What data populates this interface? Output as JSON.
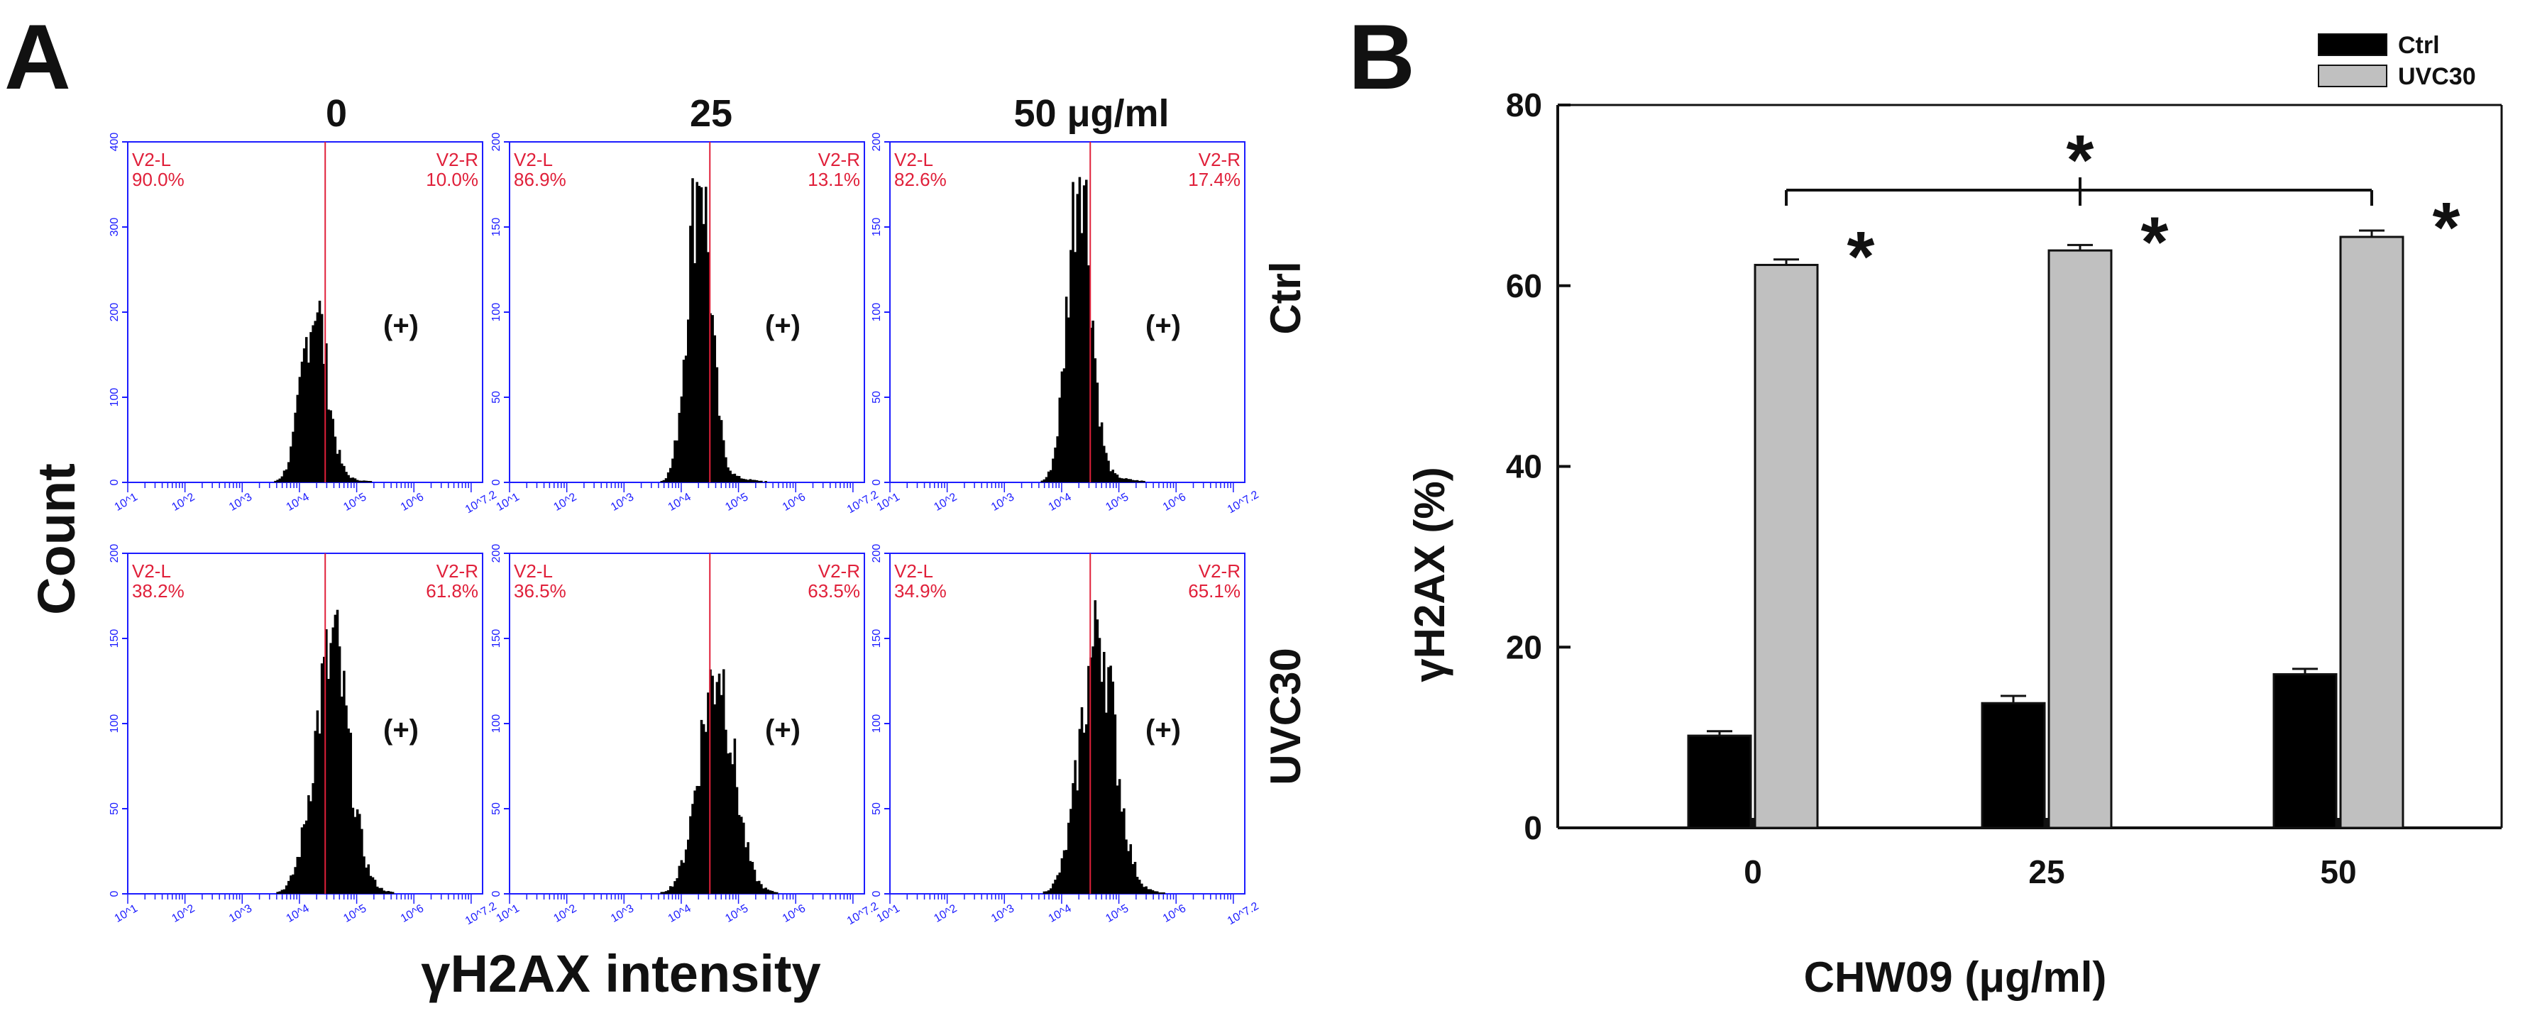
{
  "panel_a": {
    "letter": "A",
    "column_headers": [
      "0",
      "25",
      "50 μg/ml"
    ],
    "row_labels": [
      "Ctrl",
      "UVC30"
    ],
    "y_title": "Count",
    "x_title": "γH2AX intensity",
    "gate_left_label": "V2-L",
    "gate_right_label": "V2-R",
    "positive_marker": "(+)",
    "x_tick_labels": [
      "10^1",
      "10^2",
      "10^3",
      "10^4",
      "10^5",
      "10^6",
      "10^7.2"
    ],
    "hist_color": "#000000",
    "axis_color": "#1c1cff",
    "gate_color": "#e0203a",
    "histograms": [
      {
        "row": 0,
        "col": 0,
        "ymax": 400,
        "yticks": [
          0,
          100,
          200,
          300,
          400
        ],
        "left_pct": "90.0%",
        "right_pct": "10.0%",
        "peak_log": 4.25,
        "peak_count": 210,
        "spread": 0.22,
        "gate_log": 4.45
      },
      {
        "row": 0,
        "col": 1,
        "ymax": 200,
        "yticks": [
          0,
          50,
          100,
          150,
          200
        ],
        "left_pct": "86.9%",
        "right_pct": "13.1%",
        "peak_log": 4.3,
        "peak_count": 185,
        "spread": 0.2,
        "gate_log": 4.5
      },
      {
        "row": 0,
        "col": 2,
        "ymax": 200,
        "yticks": [
          0,
          50,
          100,
          150,
          200
        ],
        "left_pct": "82.6%",
        "right_pct": "17.4%",
        "peak_log": 4.3,
        "peak_count": 190,
        "spread": 0.2,
        "gate_log": 4.5
      },
      {
        "row": 1,
        "col": 0,
        "ymax": 200,
        "yticks": [
          0,
          50,
          100,
          150,
          200
        ],
        "left_pct": "38.2%",
        "right_pct": "61.8%",
        "peak_log": 4.55,
        "peak_count": 145,
        "spread": 0.3,
        "gate_log": 4.45
      },
      {
        "row": 1,
        "col": 1,
        "ymax": 200,
        "yticks": [
          0,
          50,
          100,
          150,
          200
        ],
        "left_pct": "36.5%",
        "right_pct": "63.5%",
        "peak_log": 4.6,
        "peak_count": 135,
        "spread": 0.3,
        "gate_log": 4.5
      },
      {
        "row": 1,
        "col": 2,
        "ymax": 200,
        "yticks": [
          0,
          50,
          100,
          150,
          200
        ],
        "left_pct": "34.9%",
        "right_pct": "65.1%",
        "peak_log": 4.62,
        "peak_count": 155,
        "spread": 0.3,
        "gate_log": 4.5
      }
    ]
  },
  "chart_data": {
    "type": "bar",
    "panel_letter": "B",
    "categories": [
      "0",
      "25",
      "50"
    ],
    "series": [
      {
        "name": "Ctrl",
        "values": [
          10.2,
          13.8,
          17.0
        ],
        "errors": [
          0.5,
          0.8,
          0.6
        ],
        "color": "#000000"
      },
      {
        "name": "UVC30",
        "values": [
          62.3,
          63.9,
          65.4
        ],
        "errors": [
          0.6,
          0.6,
          0.7
        ],
        "color": "#c0c0c0"
      }
    ],
    "xlabel": "CHW09 (μg/ml)",
    "ylabel": "γH2AX (%)",
    "ylim": [
      0,
      80
    ],
    "yticks": [
      0,
      20,
      40,
      60,
      80
    ],
    "legend_position": "top-right",
    "significance_marker": "*",
    "grid": false
  }
}
